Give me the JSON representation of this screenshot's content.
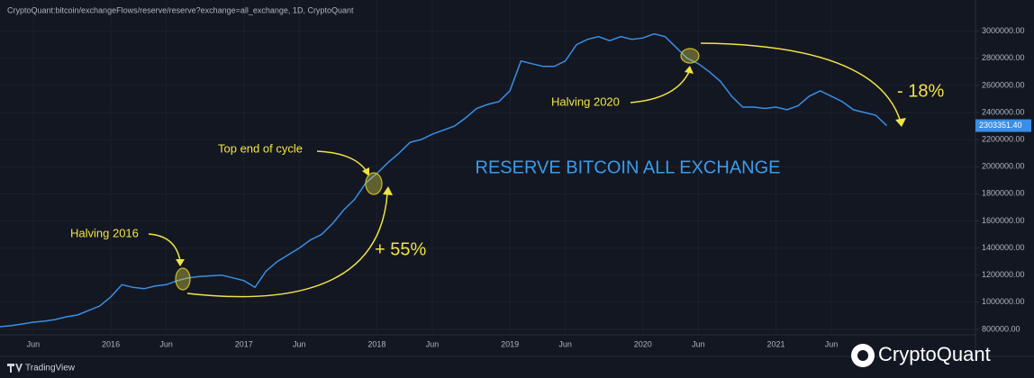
{
  "chart_data": {
    "type": "line",
    "header": "CryptoQuant:bitcoin/exchangeFlows/reserve/reserve?exchange=all_exchange, 1D, CryptoQuant",
    "title": "RESERVE BITCOIN ALL EXCHANGE",
    "annotations": [
      "Halving 2016",
      "Top end of cycle",
      "Halving 2020",
      "+ 55%",
      "- 18%"
    ],
    "footer": "TradingView",
    "watermark": "CryptoQuant",
    "x": [
      "2015-03",
      "2015-04",
      "2015-05",
      "2015-06",
      "2015-07",
      "2015-08",
      "2015-09",
      "2015-10",
      "2015-11",
      "2015-12",
      "2016-01",
      "2016-02",
      "2016-03",
      "2016-04",
      "2016-05",
      "2016-06",
      "2016-07",
      "2016-08",
      "2016-09",
      "2016-10",
      "2016-11",
      "2016-12",
      "2017-01",
      "2017-02",
      "2017-03",
      "2017-04",
      "2017-05",
      "2017-06",
      "2017-07",
      "2017-08",
      "2017-09",
      "2017-10",
      "2017-11",
      "2017-12",
      "2018-01",
      "2018-02",
      "2018-03",
      "2018-04",
      "2018-05",
      "2018-06",
      "2018-07",
      "2018-08",
      "2018-09",
      "2018-10",
      "2018-11",
      "2018-12",
      "2019-01",
      "2019-02",
      "2019-03",
      "2019-04",
      "2019-05",
      "2019-06",
      "2019-07",
      "2019-08",
      "2019-09",
      "2019-10",
      "2019-11",
      "2019-12",
      "2020-01",
      "2020-02",
      "2020-03",
      "2020-04",
      "2020-05",
      "2020-06",
      "2020-07",
      "2020-08",
      "2020-09",
      "2020-10",
      "2020-11",
      "2020-12",
      "2021-01",
      "2021-02",
      "2021-03",
      "2021-04",
      "2021-05",
      "2021-06",
      "2021-07",
      "2021-08",
      "2021-09",
      "2021-10",
      "2021-11"
    ],
    "series": [
      {
        "name": "reserve",
        "color": "#3a8ee6",
        "values": [
          820000,
          827000,
          840000,
          853000,
          860000,
          873000,
          893000,
          906000,
          940000,
          973000,
          1040000,
          1130000,
          1110000,
          1100000,
          1120000,
          1130000,
          1160000,
          1180000,
          1190000,
          1195000,
          1200000,
          1180000,
          1160000,
          1110000,
          1230000,
          1300000,
          1350000,
          1400000,
          1460000,
          1500000,
          1580000,
          1680000,
          1760000,
          1880000,
          1950000,
          2030000,
          2100000,
          2180000,
          2200000,
          2240000,
          2270000,
          2300000,
          2360000,
          2430000,
          2460000,
          2480000,
          2560000,
          2780000,
          2760000,
          2740000,
          2740000,
          2780000,
          2900000,
          2940000,
          2960000,
          2930000,
          2960000,
          2940000,
          2950000,
          2980000,
          2960000,
          2880000,
          2800000,
          2760000,
          2700000,
          2630000,
          2520000,
          2440000,
          2440000,
          2430000,
          2440000,
          2420000,
          2450000,
          2520000,
          2560000,
          2520000,
          2480000,
          2420000,
          2400000,
          2380000,
          2303351.4
        ]
      }
    ],
    "last_value_label": "2303351.40",
    "xlim": [
      "2015-03",
      "2022-07"
    ],
    "xticks": [
      {
        "value": "2015-06",
        "label": "Jun"
      },
      {
        "value": "2016-01",
        "label": "2016"
      },
      {
        "value": "2016-06",
        "label": "Jun"
      },
      {
        "value": "2017-01",
        "label": "2017"
      },
      {
        "value": "2017-06",
        "label": "Jun"
      },
      {
        "value": "2018-01",
        "label": "2018"
      },
      {
        "value": "2018-06",
        "label": "Jun"
      },
      {
        "value": "2019-01",
        "label": "2019"
      },
      {
        "value": "2019-06",
        "label": "Jun"
      },
      {
        "value": "2020-01",
        "label": "2020"
      },
      {
        "value": "2020-06",
        "label": "Jun"
      },
      {
        "value": "2021-01",
        "label": "2021"
      },
      {
        "value": "2021-06",
        "label": "Jun"
      }
    ],
    "ylim": [
      760000,
      3230000
    ],
    "yticks": [
      {
        "value": 800000,
        "label": "800000.00"
      },
      {
        "value": 1000000,
        "label": "1000000.00"
      },
      {
        "value": 1200000,
        "label": "1200000.00"
      },
      {
        "value": 1400000,
        "label": "1400000.00"
      },
      {
        "value": 1600000,
        "label": "1600000.00"
      },
      {
        "value": 1800000,
        "label": "1800000.00"
      },
      {
        "value": 2000000,
        "label": "2000000.00"
      },
      {
        "value": 2200000,
        "label": "2200000.00"
      },
      {
        "value": 2400000,
        "label": "2400000.00"
      },
      {
        "value": 2600000,
        "label": "2600000.00"
      },
      {
        "value": 2800000,
        "label": "2800000.00"
      },
      {
        "value": 3000000,
        "label": "3000000.00"
      }
    ],
    "grid": true
  }
}
